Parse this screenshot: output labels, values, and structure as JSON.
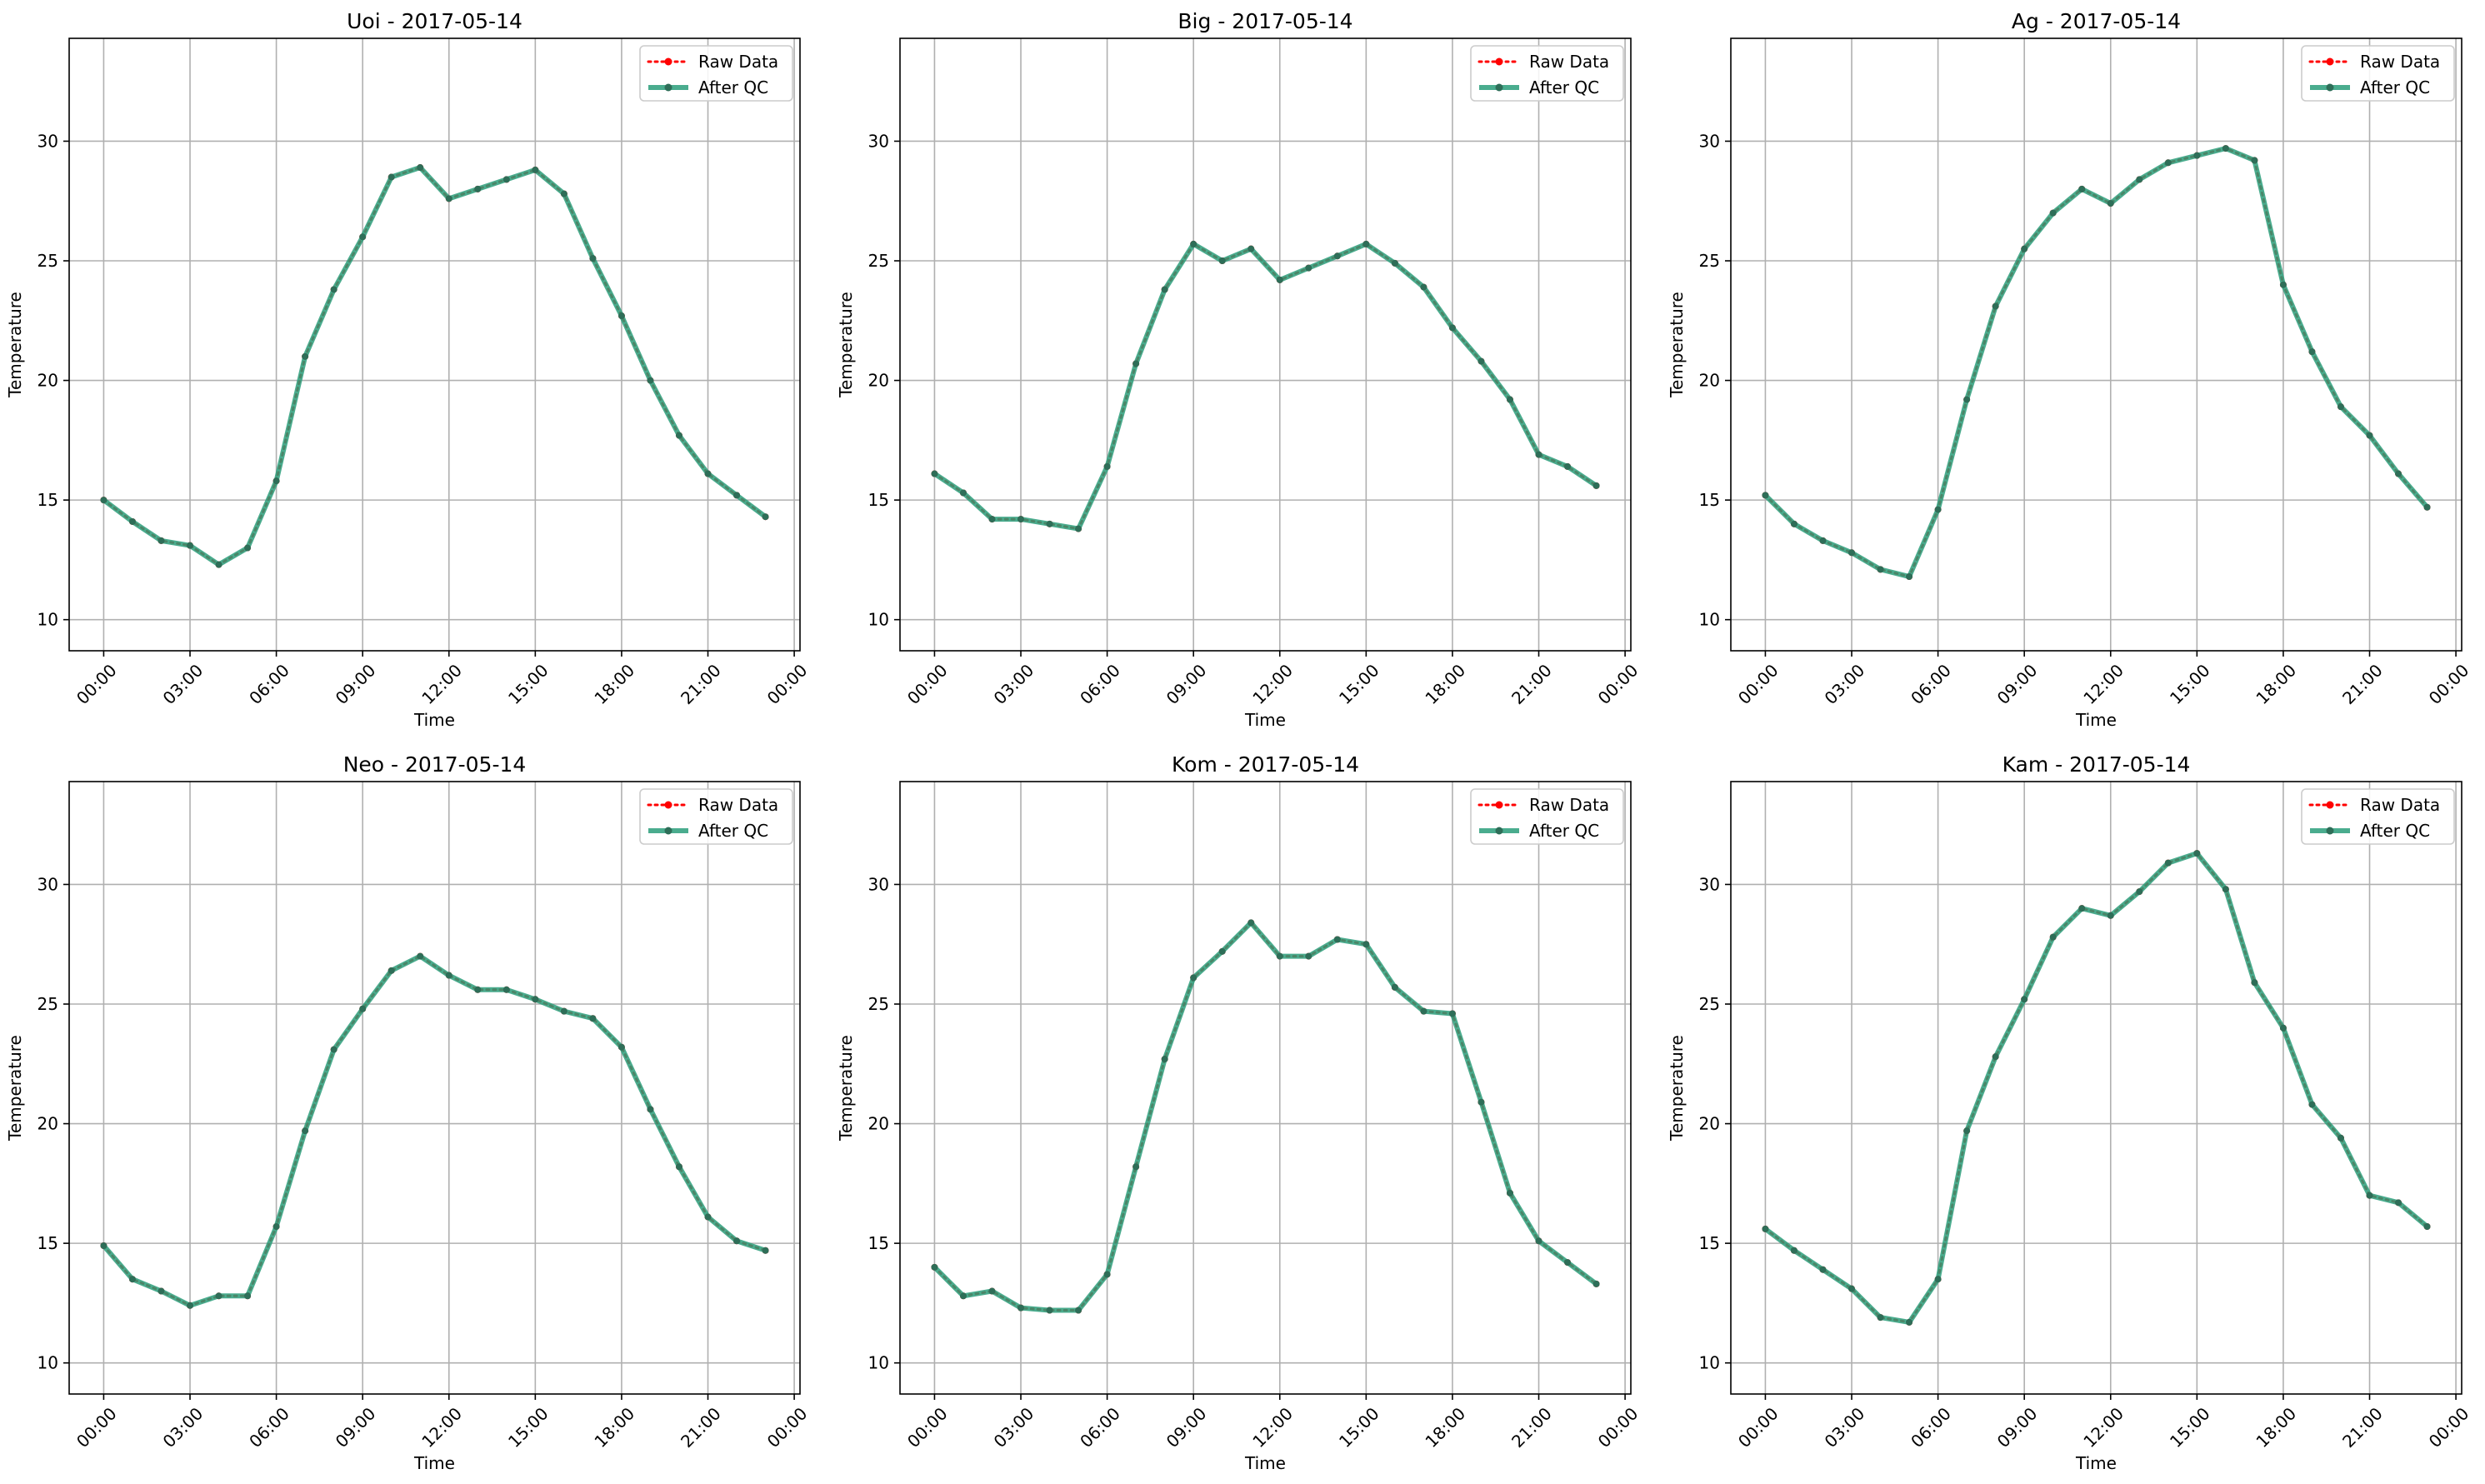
{
  "chart_data": [
    {
      "type": "line",
      "title": "Uoi - 2017-05-14",
      "xlabel": "Time",
      "ylabel": "Temperature",
      "x_ticks": [
        "00:00",
        "03:00",
        "06:00",
        "09:00",
        "12:00",
        "15:00",
        "18:00",
        "21:00",
        "00:00"
      ],
      "y_ticks": [
        10,
        15,
        20,
        25,
        30
      ],
      "xlim": [
        -1.2,
        24.2
      ],
      "ylim": [
        8.7,
        34.3
      ],
      "grid": true,
      "legend": "top-right",
      "hours": [
        0,
        1,
        2,
        3,
        4,
        5,
        6,
        7,
        8,
        9,
        10,
        11,
        12,
        13,
        14,
        15,
        16,
        17,
        18,
        19,
        20,
        21,
        22,
        23
      ],
      "series": [
        {
          "name": "Raw Data",
          "color": "#ff0000",
          "style": "dotted",
          "values": [
            15.0,
            14.1,
            13.3,
            13.1,
            12.3,
            13.0,
            15.8,
            21.0,
            23.8,
            26.0,
            28.5,
            28.9,
            27.6,
            28.0,
            28.4,
            28.8,
            27.8,
            25.1,
            22.7,
            20.0,
            17.7,
            16.1,
            15.2,
            14.3
          ]
        },
        {
          "name": "After QC",
          "color": "#2a9d7a",
          "style": "solid",
          "values": [
            15.0,
            14.1,
            13.3,
            13.1,
            12.3,
            13.0,
            15.8,
            21.0,
            23.8,
            26.0,
            28.5,
            28.9,
            27.6,
            28.0,
            28.4,
            28.8,
            27.8,
            25.1,
            22.7,
            20.0,
            17.7,
            16.1,
            15.2,
            14.3
          ]
        }
      ]
    },
    {
      "type": "line",
      "title": "Big - 2017-05-14",
      "xlabel": "Time",
      "ylabel": "Temperature",
      "x_ticks": [
        "00:00",
        "03:00",
        "06:00",
        "09:00",
        "12:00",
        "15:00",
        "18:00",
        "21:00",
        "00:00"
      ],
      "y_ticks": [
        10,
        15,
        20,
        25,
        30
      ],
      "xlim": [
        -1.2,
        24.2
      ],
      "ylim": [
        8.7,
        34.3
      ],
      "grid": true,
      "legend": "top-right",
      "hours": [
        0,
        1,
        2,
        3,
        4,
        5,
        6,
        7,
        8,
        9,
        10,
        11,
        12,
        13,
        14,
        15,
        16,
        17,
        18,
        19,
        20,
        21,
        22,
        23
      ],
      "series": [
        {
          "name": "Raw Data",
          "color": "#ff0000",
          "style": "dotted",
          "values": [
            16.1,
            15.3,
            14.2,
            14.2,
            14.0,
            13.8,
            16.4,
            20.7,
            23.8,
            25.7,
            25.0,
            25.5,
            24.2,
            24.7,
            25.2,
            25.7,
            24.9,
            23.9,
            22.2,
            20.8,
            19.2,
            16.9,
            16.4,
            15.6
          ]
        },
        {
          "name": "After QC",
          "color": "#2a9d7a",
          "style": "solid",
          "values": [
            16.1,
            15.3,
            14.2,
            14.2,
            14.0,
            13.8,
            16.4,
            20.7,
            23.8,
            25.7,
            25.0,
            25.5,
            24.2,
            24.7,
            25.2,
            25.7,
            24.9,
            23.9,
            22.2,
            20.8,
            19.2,
            16.9,
            16.4,
            15.6
          ]
        }
      ]
    },
    {
      "type": "line",
      "title": "Ag - 2017-05-14",
      "xlabel": "Time",
      "ylabel": "Temperature",
      "x_ticks": [
        "00:00",
        "03:00",
        "06:00",
        "09:00",
        "12:00",
        "15:00",
        "18:00",
        "21:00",
        "00:00"
      ],
      "y_ticks": [
        10,
        15,
        20,
        25,
        30
      ],
      "xlim": [
        -1.2,
        24.2
      ],
      "ylim": [
        8.7,
        34.3
      ],
      "grid": true,
      "legend": "top-right",
      "hours": [
        0,
        1,
        2,
        3,
        4,
        5,
        6,
        7,
        8,
        9,
        10,
        11,
        12,
        13,
        14,
        15,
        16,
        17,
        18,
        19,
        20,
        21,
        22,
        23
      ],
      "series": [
        {
          "name": "Raw Data",
          "color": "#ff0000",
          "style": "dotted",
          "values": [
            15.2,
            14.0,
            13.3,
            12.8,
            12.1,
            11.8,
            14.6,
            19.2,
            23.1,
            25.5,
            27.0,
            28.0,
            27.4,
            28.4,
            29.1,
            29.4,
            29.7,
            29.2,
            24.0,
            21.2,
            18.9,
            17.7,
            16.1,
            14.7
          ]
        },
        {
          "name": "After QC",
          "color": "#2a9d7a",
          "style": "solid",
          "values": [
            15.2,
            14.0,
            13.3,
            12.8,
            12.1,
            11.8,
            14.6,
            19.2,
            23.1,
            25.5,
            27.0,
            28.0,
            27.4,
            28.4,
            29.1,
            29.4,
            29.7,
            29.2,
            24.0,
            21.2,
            18.9,
            17.7,
            16.1,
            14.7
          ]
        }
      ]
    },
    {
      "type": "line",
      "title": "Neo - 2017-05-14",
      "xlabel": "Time",
      "ylabel": "Temperature",
      "x_ticks": [
        "00:00",
        "03:00",
        "06:00",
        "09:00",
        "12:00",
        "15:00",
        "18:00",
        "21:00",
        "00:00"
      ],
      "y_ticks": [
        10,
        15,
        20,
        25,
        30
      ],
      "xlim": [
        -1.2,
        24.2
      ],
      "ylim": [
        8.7,
        34.3
      ],
      "grid": true,
      "legend": "top-right",
      "hours": [
        0,
        1,
        2,
        3,
        4,
        5,
        6,
        7,
        8,
        9,
        10,
        11,
        12,
        13,
        14,
        15,
        16,
        17,
        18,
        19,
        20,
        21,
        22,
        23
      ],
      "series": [
        {
          "name": "Raw Data",
          "color": "#ff0000",
          "style": "dotted",
          "values": [
            14.9,
            13.5,
            13.0,
            12.4,
            12.8,
            12.8,
            15.7,
            19.7,
            23.1,
            24.8,
            26.4,
            27.0,
            26.2,
            25.6,
            25.6,
            25.2,
            24.7,
            24.4,
            23.2,
            20.6,
            18.2,
            16.1,
            15.1,
            14.7
          ]
        },
        {
          "name": "After QC",
          "color": "#2a9d7a",
          "style": "solid",
          "values": [
            14.9,
            13.5,
            13.0,
            12.4,
            12.8,
            12.8,
            15.7,
            19.7,
            23.1,
            24.8,
            26.4,
            27.0,
            26.2,
            25.6,
            25.6,
            25.2,
            24.7,
            24.4,
            23.2,
            20.6,
            18.2,
            16.1,
            15.1,
            14.7
          ]
        }
      ]
    },
    {
      "type": "line",
      "title": "Kom - 2017-05-14",
      "xlabel": "Time",
      "ylabel": "Temperature",
      "x_ticks": [
        "00:00",
        "03:00",
        "06:00",
        "09:00",
        "12:00",
        "15:00",
        "18:00",
        "21:00",
        "00:00"
      ],
      "y_ticks": [
        10,
        15,
        20,
        25,
        30
      ],
      "xlim": [
        -1.2,
        24.2
      ],
      "ylim": [
        8.7,
        34.3
      ],
      "grid": true,
      "legend": "top-right",
      "hours": [
        0,
        1,
        2,
        3,
        4,
        5,
        6,
        7,
        8,
        9,
        10,
        11,
        12,
        13,
        14,
        15,
        16,
        17,
        18,
        19,
        20,
        21,
        22,
        23
      ],
      "series": [
        {
          "name": "Raw Data",
          "color": "#ff0000",
          "style": "dotted",
          "values": [
            14.0,
            12.8,
            13.0,
            12.3,
            12.2,
            12.2,
            13.7,
            18.2,
            22.7,
            26.1,
            27.2,
            28.4,
            27.0,
            27.0,
            27.7,
            27.5,
            25.7,
            24.7,
            24.6,
            20.9,
            17.1,
            15.1,
            14.2,
            13.3
          ]
        },
        {
          "name": "After QC",
          "color": "#2a9d7a",
          "style": "solid",
          "values": [
            14.0,
            12.8,
            13.0,
            12.3,
            12.2,
            12.2,
            13.7,
            18.2,
            22.7,
            26.1,
            27.2,
            28.4,
            27.0,
            27.0,
            27.7,
            27.5,
            25.7,
            24.7,
            24.6,
            20.9,
            17.1,
            15.1,
            14.2,
            13.3
          ]
        }
      ]
    },
    {
      "type": "line",
      "title": "Kam - 2017-05-14",
      "xlabel": "Time",
      "ylabel": "Temperature",
      "x_ticks": [
        "00:00",
        "03:00",
        "06:00",
        "09:00",
        "12:00",
        "15:00",
        "18:00",
        "21:00",
        "00:00"
      ],
      "y_ticks": [
        10,
        15,
        20,
        25,
        30
      ],
      "xlim": [
        -1.2,
        24.2
      ],
      "ylim": [
        8.7,
        34.3
      ],
      "grid": true,
      "legend": "top-right",
      "hours": [
        0,
        1,
        2,
        3,
        4,
        5,
        6,
        7,
        8,
        9,
        10,
        11,
        12,
        13,
        14,
        15,
        16,
        17,
        18,
        19,
        20,
        21,
        22,
        23
      ],
      "series": [
        {
          "name": "Raw Data",
          "color": "#ff0000",
          "style": "dotted",
          "values": [
            15.6,
            14.7,
            13.9,
            13.1,
            11.9,
            11.7,
            13.5,
            19.7,
            22.8,
            25.2,
            27.8,
            29.0,
            28.7,
            29.7,
            30.9,
            31.3,
            29.8,
            25.9,
            24.0,
            20.8,
            19.4,
            17.0,
            16.7,
            15.7
          ]
        },
        {
          "name": "After QC",
          "color": "#2a9d7a",
          "style": "solid",
          "values": [
            15.6,
            14.7,
            13.9,
            13.1,
            11.9,
            11.7,
            13.5,
            19.7,
            22.8,
            25.2,
            27.8,
            29.0,
            28.7,
            29.7,
            30.9,
            31.3,
            29.8,
            25.9,
            24.0,
            20.8,
            19.4,
            17.0,
            16.7,
            15.7
          ]
        }
      ]
    }
  ]
}
